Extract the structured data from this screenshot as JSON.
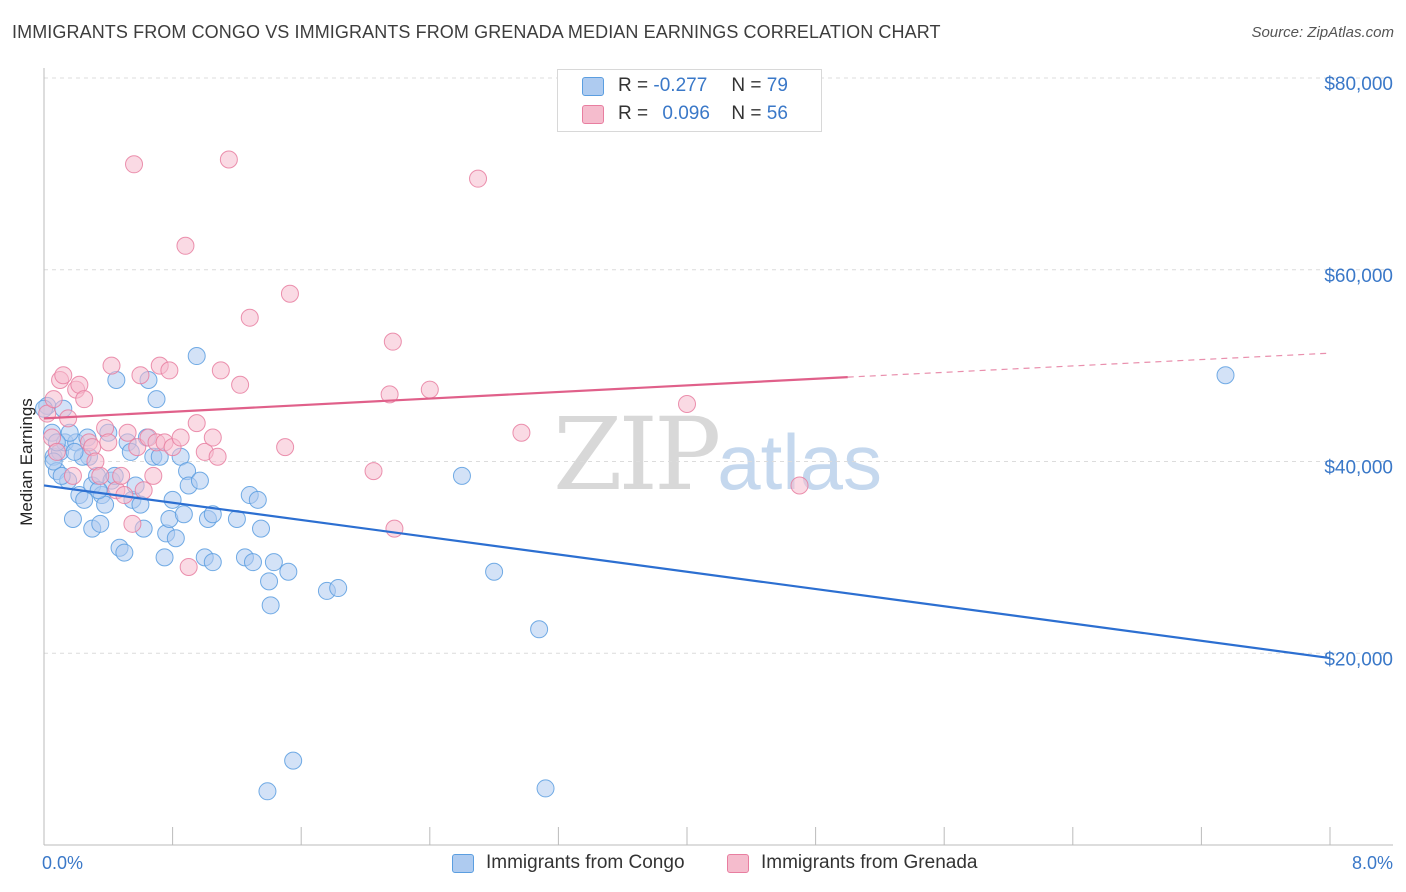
{
  "title": "IMMIGRANTS FROM CONGO VS IMMIGRANTS FROM GRENADA MEDIAN EARNINGS CORRELATION CHART",
  "source": "Source: ZipAtlas.com",
  "watermark": {
    "zip": "ZIP",
    "atlas": "atlas"
  },
  "legend": {
    "rows": [
      {
        "r_label": "R =",
        "r_value": "-0.277",
        "n_label": "N =",
        "n_value": "79"
      },
      {
        "r_label": "R =",
        "r_value": "0.096",
        "n_label": "N =",
        "n_value": "56"
      }
    ]
  },
  "bottom_legend": [
    "Immigrants from Congo",
    "Immigrants from Grenada"
  ],
  "colors": {
    "congo": "#5b9ee0",
    "congo_fill": "#aecbf0",
    "congo_line": "#2c6fd1",
    "grenada": "#e87ea0",
    "grenada_fill": "#f5bccd",
    "grenada_line": "#e0608a",
    "axis_text": "#3a78c8",
    "grid": "#dcdcdc"
  },
  "chart_data": {
    "type": "scatter",
    "xlabel": "",
    "ylabel": "Median Earnings",
    "xlim": [
      0,
      8
    ],
    "ylim": [
      0,
      80000
    ],
    "x_tick_labels": [
      "0.0%",
      "8.0%"
    ],
    "y_ticks": [
      20000,
      40000,
      60000,
      80000
    ],
    "y_tick_labels": [
      "$20,000",
      "$40,000",
      "$60,000",
      "$80,000"
    ],
    "grid": true,
    "legend_position": "top-center",
    "series": [
      {
        "name": "Immigrants from Congo",
        "r": -0.277,
        "n": 79,
        "trend": {
          "x0": 0.0,
          "y0": 37500,
          "x1": 8.0,
          "y1": 19500
        },
        "points": [
          [
            0.02,
            45800
          ],
          [
            0.05,
            43000
          ],
          [
            0.06,
            40500
          ],
          [
            0.08,
            39000
          ],
          [
            0.1,
            41000
          ],
          [
            0.12,
            45500
          ],
          [
            0.13,
            42000
          ],
          [
            0.15,
            38000
          ],
          [
            0.18,
            34000
          ],
          [
            0.2,
            42000
          ],
          [
            0.22,
            36500
          ],
          [
            0.25,
            36000
          ],
          [
            0.27,
            42500
          ],
          [
            0.28,
            40500
          ],
          [
            0.3,
            37500
          ],
          [
            0.3,
            33000
          ],
          [
            0.33,
            38500
          ],
          [
            0.35,
            33500
          ],
          [
            0.36,
            36500
          ],
          [
            0.38,
            35500
          ],
          [
            0.4,
            43000
          ],
          [
            0.42,
            38000
          ],
          [
            0.45,
            48500
          ],
          [
            0.47,
            31000
          ],
          [
            0.5,
            30500
          ],
          [
            0.52,
            42000
          ],
          [
            0.55,
            36000
          ],
          [
            0.57,
            37500
          ],
          [
            0.6,
            35500
          ],
          [
            0.62,
            33000
          ],
          [
            0.65,
            48500
          ],
          [
            0.68,
            40500
          ],
          [
            0.7,
            46500
          ],
          [
            0.75,
            30000
          ],
          [
            0.76,
            32500
          ],
          [
            0.78,
            34000
          ],
          [
            0.8,
            36000
          ],
          [
            0.82,
            32000
          ],
          [
            0.85,
            40500
          ],
          [
            0.87,
            34500
          ],
          [
            0.89,
            39000
          ],
          [
            0.9,
            37500
          ],
          [
            0.95,
            51000
          ],
          [
            0.97,
            38000
          ],
          [
            1.0,
            30000
          ],
          [
            1.02,
            34000
          ],
          [
            1.05,
            34500
          ],
          [
            1.05,
            29500
          ],
          [
            1.2,
            34000
          ],
          [
            1.25,
            30000
          ],
          [
            1.28,
            36500
          ],
          [
            1.3,
            29500
          ],
          [
            1.33,
            36000
          ],
          [
            1.35,
            33000
          ],
          [
            1.4,
            27500
          ],
          [
            1.41,
            25000
          ],
          [
            1.43,
            29500
          ],
          [
            1.52,
            28500
          ],
          [
            1.55,
            8800
          ],
          [
            1.76,
            26500
          ],
          [
            1.83,
            26800
          ],
          [
            2.6,
            38500
          ],
          [
            2.8,
            28500
          ],
          [
            3.08,
            22500
          ],
          [
            3.12,
            5900
          ],
          [
            1.39,
            5600
          ],
          [
            0.0,
            45500
          ],
          [
            0.06,
            40000
          ],
          [
            0.11,
            38500
          ],
          [
            0.16,
            43000
          ],
          [
            0.24,
            40500
          ],
          [
            0.34,
            37000
          ],
          [
            0.44,
            38500
          ],
          [
            0.54,
            41000
          ],
          [
            0.64,
            42500
          ],
          [
            0.72,
            40500
          ],
          [
            7.35,
            49000
          ],
          [
            0.08,
            42000
          ],
          [
            0.19,
            41000
          ]
        ]
      },
      {
        "name": "Immigrants from Grenada",
        "r": 0.096,
        "n": 56,
        "trend": {
          "x0": 0.0,
          "y0": 44500,
          "x1": 5.0,
          "y1": 48800
        },
        "trend_dashed": {
          "x0": 5.0,
          "y0": 48800,
          "x1": 8.0,
          "y1": 51300
        },
        "points": [
          [
            0.02,
            45000
          ],
          [
            0.05,
            42500
          ],
          [
            0.08,
            41000
          ],
          [
            0.1,
            48500
          ],
          [
            0.12,
            49000
          ],
          [
            0.15,
            44500
          ],
          [
            0.18,
            38500
          ],
          [
            0.2,
            47500
          ],
          [
            0.22,
            48000
          ],
          [
            0.25,
            46500
          ],
          [
            0.28,
            42000
          ],
          [
            0.3,
            41500
          ],
          [
            0.32,
            40000
          ],
          [
            0.35,
            38500
          ],
          [
            0.38,
            43500
          ],
          [
            0.4,
            42000
          ],
          [
            0.42,
            50000
          ],
          [
            0.45,
            37000
          ],
          [
            0.48,
            38500
          ],
          [
            0.5,
            36500
          ],
          [
            0.52,
            43000
          ],
          [
            0.55,
            33500
          ],
          [
            0.56,
            71000
          ],
          [
            0.58,
            41500
          ],
          [
            0.6,
            49000
          ],
          [
            0.62,
            37000
          ],
          [
            0.65,
            42500
          ],
          [
            0.68,
            38500
          ],
          [
            0.7,
            42000
          ],
          [
            0.72,
            50000
          ],
          [
            0.75,
            42000
          ],
          [
            0.78,
            49500
          ],
          [
            0.8,
            41500
          ],
          [
            0.85,
            42500
          ],
          [
            0.88,
            62500
          ],
          [
            0.9,
            29000
          ],
          [
            0.95,
            44000
          ],
          [
            1.0,
            41000
          ],
          [
            1.05,
            42500
          ],
          [
            1.08,
            40500
          ],
          [
            1.1,
            49500
          ],
          [
            1.15,
            71500
          ],
          [
            1.22,
            48000
          ],
          [
            1.28,
            55000
          ],
          [
            1.5,
            41500
          ],
          [
            1.53,
            57500
          ],
          [
            2.15,
            47000
          ],
          [
            2.17,
            52500
          ],
          [
            2.18,
            33000
          ],
          [
            2.05,
            39000
          ],
          [
            2.4,
            47500
          ],
          [
            2.7,
            69500
          ],
          [
            2.97,
            43000
          ],
          [
            4.0,
            46000
          ],
          [
            4.7,
            37500
          ],
          [
            0.06,
            46500
          ]
        ]
      }
    ]
  }
}
